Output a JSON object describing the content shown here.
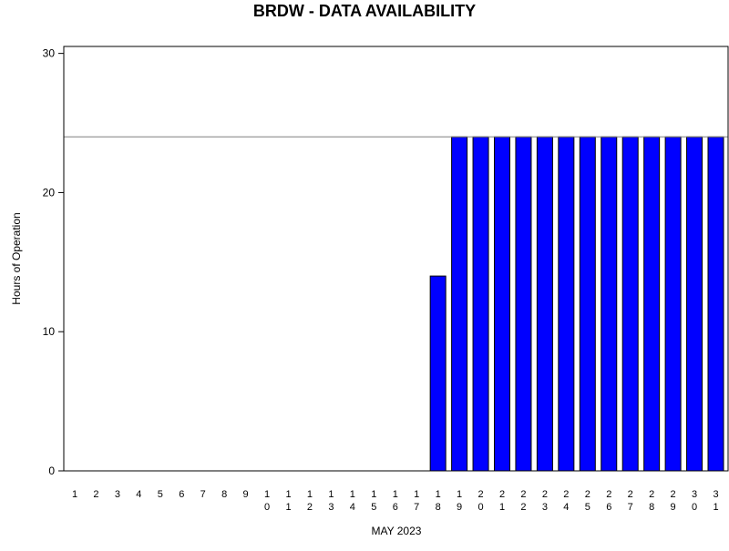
{
  "chart_data": {
    "type": "bar",
    "title": "BRDW - DATA AVAILABILITY",
    "xlabel": "MAY 2023",
    "ylabel": "Hours of Operation",
    "ylim": [
      0,
      30.5
    ],
    "yticks": [
      0,
      10,
      20,
      30
    ],
    "reference_line": 24,
    "bar_color": "#0000ff",
    "categories": [
      "1",
      "2",
      "3",
      "4",
      "5",
      "6",
      "7",
      "8",
      "9",
      "10",
      "11",
      "12",
      "13",
      "14",
      "15",
      "16",
      "17",
      "18",
      "19",
      "20",
      "21",
      "22",
      "23",
      "24",
      "25",
      "26",
      "27",
      "28",
      "29",
      "30",
      "31"
    ],
    "values": [
      0,
      0,
      0,
      0,
      0,
      0,
      0,
      0,
      0,
      0,
      0,
      0,
      0,
      0,
      0,
      0,
      0,
      14,
      24,
      24,
      24,
      24,
      24,
      24,
      24,
      24,
      24,
      24,
      24,
      24,
      24
    ]
  }
}
